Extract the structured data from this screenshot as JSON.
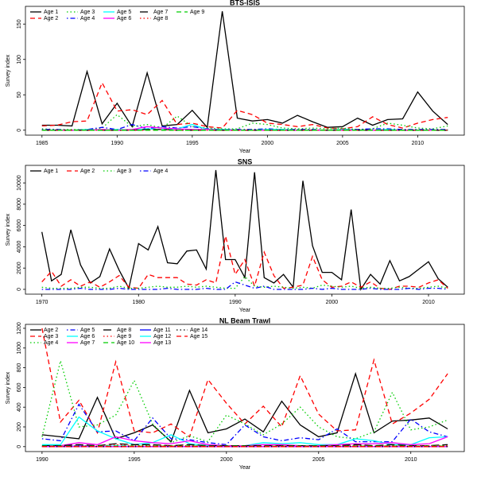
{
  "chart_data": [
    {
      "type": "line",
      "title": "BTS-ISIS",
      "x_label": "Year",
      "y_label": "Survey index",
      "legend": "top-left",
      "x": [
        1985,
        1986,
        1987,
        1988,
        1989,
        1990,
        1991,
        1992,
        1993,
        1994,
        1995,
        1996,
        1997,
        1998,
        1999,
        2000,
        2001,
        2002,
        2003,
        2004,
        2005,
        2006,
        2007,
        2008,
        2009,
        2010,
        2011,
        2012
      ],
      "xlim": [
        1983.9,
        2013.1
      ],
      "xticks": [
        1985,
        1990,
        1995,
        2000,
        2005,
        2010
      ],
      "ylim": [
        -7,
        175
      ],
      "yticks": [
        0,
        50,
        100,
        150
      ],
      "series": [
        {
          "name": "Age 1",
          "color": "#000000",
          "dash": "solid",
          "values": [
            7,
            7,
            6,
            83,
            9,
            38,
            5,
            81,
            6,
            8,
            28,
            4,
            168,
            17,
            13,
            15,
            10,
            21,
            12,
            4,
            5,
            17,
            7,
            15,
            16,
            54,
            27,
            8
          ]
        },
        {
          "name": "Age 2",
          "color": "#ff0000",
          "dash": "dashed",
          "values": [
            6,
            7,
            12,
            13,
            67,
            27,
            29,
            22,
            42,
            8,
            10,
            5,
            3,
            28,
            22,
            10,
            8,
            5,
            8,
            3,
            2,
            5,
            19,
            8,
            3,
            10,
            15,
            18
          ]
        },
        {
          "name": "Age 3",
          "color": "#00cd00",
          "dash": "dotted",
          "values": [
            2,
            1,
            1,
            1,
            3,
            22,
            5,
            8,
            3,
            20,
            5,
            3,
            2,
            2,
            10,
            8,
            3,
            2,
            3,
            2,
            3,
            1,
            2,
            10,
            7,
            3,
            2,
            6
          ]
        },
        {
          "name": "Age 4",
          "color": "#0000ff",
          "dash": "dotdash",
          "values": [
            1,
            1,
            0,
            1,
            4,
            1,
            8,
            2,
            5,
            3,
            5,
            2,
            1,
            1,
            1,
            2,
            1,
            1,
            1,
            0,
            1,
            1,
            2,
            2,
            1,
            1,
            1,
            1
          ]
        },
        {
          "name": "Age 5",
          "color": "#00ffff",
          "dash": "solid",
          "values": [
            0,
            0,
            0,
            1,
            0,
            1,
            0,
            2,
            1,
            2,
            8,
            1,
            1,
            0,
            0,
            1,
            1,
            0,
            0,
            0,
            1,
            0,
            0,
            1,
            0,
            0,
            0,
            0
          ]
        },
        {
          "name": "Age 6",
          "color": "#ff00ff",
          "dash": "solid",
          "values": [
            0,
            0,
            0,
            0,
            1,
            0,
            1,
            5,
            3,
            2,
            1,
            1,
            0,
            0,
            0,
            0,
            0,
            0,
            0,
            0,
            0,
            0,
            0,
            0,
            0,
            0,
            0,
            0
          ]
        },
        {
          "name": "Age 7",
          "color": "#000000",
          "dash": "longdash",
          "values": [
            0,
            0,
            0,
            0,
            0,
            0,
            0,
            1,
            1,
            0,
            0,
            0,
            0,
            0,
            0,
            0,
            0,
            0,
            0,
            0,
            0,
            0,
            0,
            0,
            0,
            0,
            0,
            0
          ]
        },
        {
          "name": "Age 8",
          "color": "#ff0000",
          "dash": "dotted",
          "values": [
            0,
            0,
            0,
            0,
            0,
            0,
            0,
            0,
            1,
            0,
            0,
            0,
            0,
            0,
            0,
            0,
            0,
            0,
            0,
            0,
            0,
            0,
            0,
            0,
            0,
            0,
            0,
            0
          ]
        },
        {
          "name": "Age 9",
          "color": "#00cd00",
          "dash": "dashed",
          "values": [
            0,
            0,
            0,
            0,
            0,
            0,
            0,
            0,
            0,
            0,
            0,
            0,
            0,
            0,
            0,
            0,
            0,
            0,
            0,
            0,
            0,
            0,
            0,
            0,
            0,
            0,
            0,
            0
          ]
        }
      ]
    },
    {
      "type": "line",
      "title": "SNS",
      "x_label": "Year",
      "y_label": "Survey index",
      "legend": "top-left",
      "x": [
        1970,
        1971,
        1972,
        1973,
        1974,
        1975,
        1976,
        1977,
        1978,
        1979,
        1980,
        1981,
        1982,
        1983,
        1984,
        1985,
        1986,
        1987,
        1988,
        1989,
        1990,
        1991,
        1992,
        1993,
        1994,
        1995,
        1996,
        1997,
        1998,
        1999,
        2000,
        2001,
        2002,
        2003,
        2004,
        2005,
        2006,
        2007,
        2008,
        2009,
        2010,
        2011,
        2012
      ],
      "xlim": [
        1968.3,
        2013.7
      ],
      "xticks": [
        1970,
        1980,
        1990,
        2000,
        2010
      ],
      "ylim": [
        -450,
        11650
      ],
      "yticks": [
        0,
        2000,
        4000,
        6000,
        8000,
        10000
      ],
      "series": [
        {
          "name": "Age 1",
          "color": "#000000",
          "dash": "solid",
          "values": [
            5400,
            800,
            1400,
            5600,
            2300,
            600,
            1200,
            3800,
            1800,
            100,
            4300,
            3700,
            5900,
            2500,
            2400,
            3600,
            3700,
            1900,
            11200,
            2800,
            2800,
            1100,
            11000,
            1100,
            600,
            1400,
            200,
            10200,
            4100,
            1600,
            1600,
            900,
            7500,
            0,
            1400,
            500,
            2700,
            800,
            1200,
            1900,
            2600,
            1000,
            200
          ]
        },
        {
          "name": "Age 2",
          "color": "#ff0000",
          "dash": "dashed",
          "values": [
            700,
            1700,
            300,
            900,
            300,
            700,
            200,
            700,
            1300,
            200,
            100,
            1400,
            1100,
            1100,
            1100,
            500,
            400,
            900,
            600,
            5000,
            1400,
            2800,
            300,
            3500,
            1300,
            100,
            200,
            400,
            3100,
            900,
            200,
            300,
            700,
            200,
            700,
            100,
            0,
            300,
            300,
            200,
            600,
            900,
            100
          ]
        },
        {
          "name": "Age 3",
          "color": "#00cd00",
          "dash": "dotted",
          "values": [
            200,
            100,
            100,
            100,
            200,
            200,
            100,
            100,
            300,
            100,
            100,
            200,
            300,
            200,
            200,
            300,
            200,
            300,
            200,
            100,
            100,
            1200,
            300,
            200,
            300,
            200,
            100,
            200,
            100,
            400,
            300,
            200,
            300,
            100,
            200,
            100,
            100,
            200,
            100,
            100,
            200,
            300,
            100
          ]
        },
        {
          "name": "Age 4",
          "color": "#0000ff",
          "dash": "dotdash",
          "values": [
            0,
            0,
            0,
            0,
            100,
            0,
            0,
            0,
            100,
            0,
            0,
            0,
            0,
            100,
            0,
            0,
            0,
            100,
            0,
            0,
            700,
            400,
            100,
            300,
            0,
            0,
            0,
            0,
            100,
            0,
            100,
            0,
            0,
            0,
            100,
            0,
            0,
            0,
            100,
            0,
            100,
            100,
            0
          ]
        }
      ]
    },
    {
      "type": "line",
      "title": "NL Beam Trawl",
      "x_label": "Year",
      "y_label": "Survey index",
      "legend": "top-left",
      "x": [
        1990,
        1991,
        1992,
        1993,
        1994,
        1995,
        1996,
        1997,
        1998,
        1999,
        2000,
        2001,
        2002,
        2003,
        2004,
        2005,
        2006,
        2007,
        2008,
        2009,
        2010,
        2011,
        2012
      ],
      "xlim": [
        1989.1,
        2012.9
      ],
      "xticks": [
        1990,
        1995,
        2000,
        2005,
        2010
      ],
      "ylim": [
        -50,
        1240
      ],
      "yticks": [
        0,
        200,
        400,
        600,
        800,
        1000,
        1200
      ],
      "series": [
        {
          "name": "Age 2",
          "color": "#000000",
          "dash": "solid",
          "values": [
            120,
            100,
            80,
            500,
            80,
            140,
            220,
            50,
            570,
            140,
            180,
            280,
            150,
            460,
            220,
            100,
            140,
            740,
            140,
            260,
            270,
            290,
            180
          ]
        },
        {
          "name": "Age 3",
          "color": "#ff0000",
          "dash": "dashed",
          "values": [
            1200,
            250,
            470,
            140,
            860,
            160,
            140,
            230,
            100,
            680,
            440,
            230,
            410,
            200,
            720,
            330,
            160,
            170,
            880,
            230,
            340,
            480,
            740
          ]
        },
        {
          "name": "Age 4",
          "color": "#00cd00",
          "dash": "dotted",
          "values": [
            100,
            870,
            200,
            220,
            320,
            670,
            230,
            40,
            110,
            50,
            320,
            230,
            120,
            230,
            400,
            200,
            100,
            80,
            150,
            550,
            170,
            200,
            270
          ]
        },
        {
          "name": "Age 5",
          "color": "#0000ff",
          "dash": "dotdash",
          "values": [
            80,
            60,
            430,
            150,
            160,
            60,
            290,
            80,
            70,
            40,
            20,
            220,
            100,
            60,
            90,
            70,
            180,
            50,
            50,
            50,
            280,
            150,
            100
          ]
        },
        {
          "name": "Age 6",
          "color": "#00ffff",
          "dash": "solid",
          "values": [
            20,
            20,
            300,
            160,
            80,
            20,
            40,
            120,
            30,
            10,
            10,
            10,
            40,
            30,
            40,
            20,
            20,
            80,
            60,
            20,
            20,
            90,
            100
          ]
        },
        {
          "name": "Age 7",
          "color": "#ff00ff",
          "dash": "solid",
          "values": [
            10,
            10,
            40,
            20,
            100,
            60,
            40,
            30,
            60,
            20,
            10,
            10,
            20,
            20,
            10,
            10,
            20,
            30,
            30,
            40,
            20,
            30,
            100
          ]
        },
        {
          "name": "Age 8",
          "color": "#000000",
          "dash": "longdash",
          "values": [
            10,
            10,
            20,
            10,
            30,
            20,
            20,
            10,
            20,
            10,
            10,
            10,
            10,
            10,
            10,
            10,
            10,
            20,
            10,
            20,
            10,
            10,
            20
          ]
        },
        {
          "name": "Age 9",
          "color": "#ff0000",
          "dash": "dotted",
          "values": [
            5,
            5,
            10,
            5,
            20,
            10,
            10,
            10,
            10,
            5,
            5,
            5,
            5,
            5,
            5,
            5,
            5,
            10,
            5,
            10,
            5,
            10,
            10
          ]
        },
        {
          "name": "Age 10",
          "color": "#00cd00",
          "dash": "dashed",
          "values": [
            5,
            5,
            5,
            5,
            10,
            5,
            5,
            5,
            5,
            5,
            5,
            5,
            5,
            5,
            5,
            5,
            5,
            5,
            5,
            5,
            5,
            5,
            5
          ]
        },
        {
          "name": "Age 11",
          "color": "#0000ff",
          "dash": "solid",
          "values": [
            0,
            0,
            5,
            0,
            5,
            0,
            0,
            0,
            0,
            0,
            0,
            0,
            0,
            0,
            0,
            0,
            0,
            0,
            0,
            0,
            0,
            0,
            0
          ]
        },
        {
          "name": "Age 12",
          "color": "#00ffff",
          "dash": "solid",
          "values": [
            0,
            0,
            0,
            0,
            5,
            0,
            0,
            0,
            0,
            0,
            0,
            0,
            0,
            0,
            0,
            0,
            0,
            0,
            0,
            0,
            0,
            0,
            0
          ]
        },
        {
          "name": "Age 13",
          "color": "#ff00ff",
          "dash": "solid",
          "values": [
            0,
            0,
            0,
            0,
            0,
            0,
            0,
            0,
            0,
            0,
            0,
            0,
            0,
            0,
            0,
            0,
            0,
            0,
            0,
            0,
            0,
            0,
            0
          ]
        },
        {
          "name": "Age 14",
          "color": "#000000",
          "dash": "dotted",
          "values": [
            0,
            0,
            0,
            0,
            0,
            0,
            0,
            0,
            0,
            0,
            0,
            0,
            0,
            0,
            0,
            0,
            0,
            0,
            0,
            0,
            0,
            0,
            0
          ]
        },
        {
          "name": "Age 15",
          "color": "#ff0000",
          "dash": "dashed",
          "values": [
            0,
            0,
            0,
            0,
            0,
            0,
            0,
            0,
            0,
            0,
            0,
            0,
            0,
            0,
            0,
            0,
            0,
            0,
            0,
            0,
            0,
            0,
            0
          ]
        }
      ]
    }
  ]
}
